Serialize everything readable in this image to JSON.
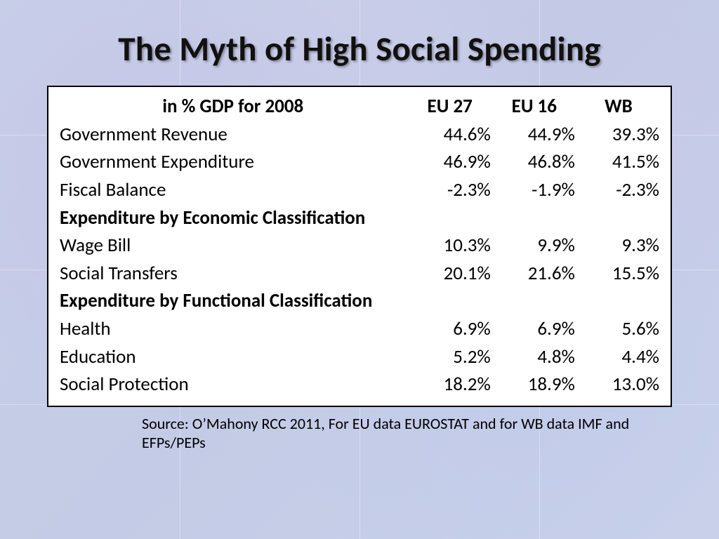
{
  "title": "The Myth of High Social Spending",
  "table": {
    "type": "table",
    "background_color": "#ffffff",
    "border_color": "#000000",
    "border_width": 2.5,
    "text_color": "#000000",
    "header_fontsize": 27,
    "body_fontsize": 27,
    "columns": [
      {
        "key": "desc",
        "label": "in % GDP for 2008",
        "align": "center",
        "width_pct": 58
      },
      {
        "key": "eu27",
        "label": "EU 27",
        "align": "right",
        "width_pct": 14
      },
      {
        "key": "eu16",
        "label": "EU 16",
        "align": "right",
        "width_pct": 14
      },
      {
        "key": "wb",
        "label": "WB",
        "align": "right",
        "width_pct": 14
      }
    ],
    "rows": [
      {
        "type": "data",
        "desc": "Government Revenue",
        "eu27": "44.6%",
        "eu16": "44.9%",
        "wb": "39.3%"
      },
      {
        "type": "data",
        "desc": "Government Expenditure",
        "eu27": "46.9%",
        "eu16": "46.8%",
        "wb": "41.5%"
      },
      {
        "type": "data",
        "desc": "Fiscal Balance",
        "eu27": "-2.3%",
        "eu16": "-1.9%",
        "wb": "-2.3%"
      },
      {
        "type": "section",
        "desc": "Expenditure by Economic Classification"
      },
      {
        "type": "data",
        "desc": "Wage Bill",
        "eu27": "10.3%",
        "eu16": "9.9%",
        "wb": "9.3%"
      },
      {
        "type": "data",
        "desc": "Social Transfers",
        "eu27": "20.1%",
        "eu16": "21.6%",
        "wb": "15.5%"
      },
      {
        "type": "section",
        "desc": "Expenditure by Functional Classification"
      },
      {
        "type": "data",
        "desc": "Health",
        "eu27": "6.9%",
        "eu16": "6.9%",
        "wb": "5.6%"
      },
      {
        "type": "data",
        "desc": "Education",
        "eu27": "5.2%",
        "eu16": "4.8%",
        "wb": "4.4%"
      },
      {
        "type": "data",
        "desc": "Social Protection",
        "eu27": "18.2%",
        "eu16": "18.9%",
        "wb": "13.0%"
      }
    ]
  },
  "source": "Source:  O’Mahony RCC 2011, For EU data EUROSTAT and for WB data IMF and  EFPs/PEPs",
  "style": {
    "title_color": "#111111",
    "title_fontsize": 49,
    "title_shadow": "2px 2px 3px rgba(0,0,0,0.35)",
    "page_background_base": "#c7cfe8",
    "font_family": "Calibri"
  }
}
